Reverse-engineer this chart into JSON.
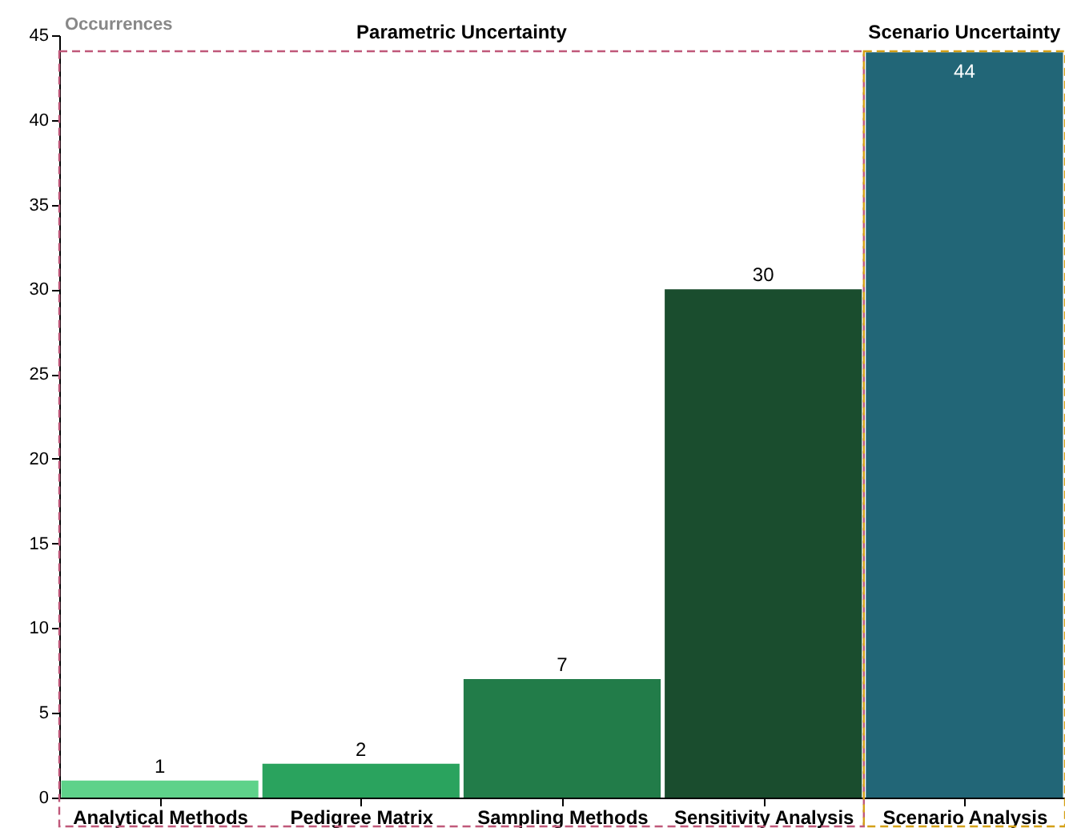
{
  "chart_data": {
    "type": "bar",
    "ylabel": "Occurrences",
    "categories": [
      "Analytical Methods",
      "Pedigree Matrix",
      "Sampling Methods",
      "Sensitivity Analysis",
      "Scenario Analysis"
    ],
    "values": [
      1,
      2,
      7,
      30,
      44
    ],
    "colors": [
      "#5ed28a",
      "#2aa35e",
      "#227c49",
      "#1a4d2e",
      "#226677"
    ],
    "ylim": [
      0,
      45
    ],
    "yticks": [
      0,
      5,
      10,
      15,
      20,
      25,
      30,
      35,
      40,
      45
    ],
    "data_labels": true,
    "grid": false,
    "annotations": [
      "Parametric Uncertainty",
      "Scenario Uncertainty"
    ]
  }
}
